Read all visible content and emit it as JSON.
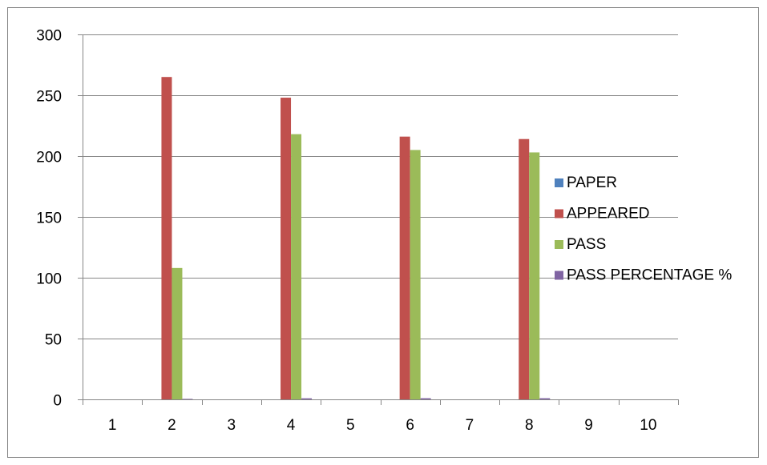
{
  "chart_data": {
    "type": "bar",
    "categories": [
      "1",
      "2",
      "3",
      "4",
      "5",
      "6",
      "7",
      "8",
      "9",
      "10"
    ],
    "series": [
      {
        "name": "PAPER",
        "color": "#4F81BD",
        "values": [
          0,
          0,
          0,
          0,
          0,
          0,
          0,
          0,
          0,
          0
        ]
      },
      {
        "name": "APPEARED",
        "color": "#C0504D",
        "values": [
          0,
          265,
          0,
          248,
          0,
          216,
          0,
          214,
          0,
          0
        ]
      },
      {
        "name": "PASS",
        "color": "#9BBB59",
        "values": [
          0,
          108,
          0,
          218,
          0,
          205,
          0,
          203,
          0,
          0
        ]
      },
      {
        "name": "PASS PERCENTAGE %",
        "color": "#8064A2",
        "values": [
          0,
          0.41,
          0,
          0.88,
          0,
          0.95,
          0,
          0.95,
          0,
          0
        ]
      }
    ],
    "ylim": [
      0,
      300
    ],
    "yticks": [
      "0",
      "50",
      "100",
      "150",
      "200",
      "250",
      "300"
    ],
    "grid": true,
    "legend": "right"
  }
}
